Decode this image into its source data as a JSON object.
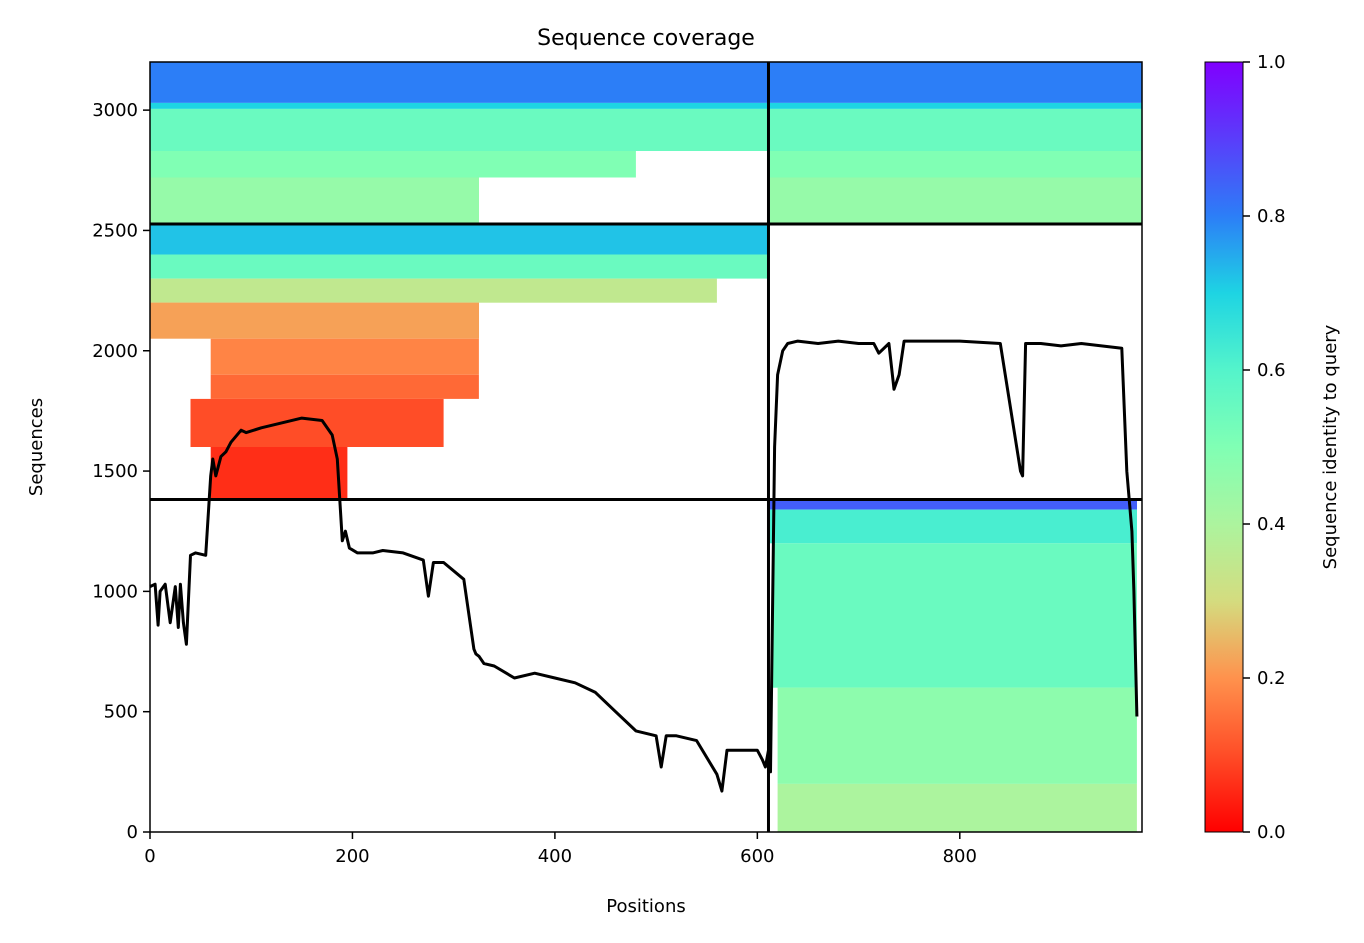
{
  "chart_data": {
    "type": "heatmap",
    "title": "Sequence coverage",
    "xlabel": "Positions",
    "ylabel": "Sequences",
    "xlim": [
      0,
      980
    ],
    "ylim": [
      0,
      3200
    ],
    "xticks": [
      0,
      200,
      400,
      600,
      800
    ],
    "yticks": [
      0,
      500,
      1000,
      1500,
      2000,
      2500,
      3000
    ],
    "grid": false,
    "colormap": "rainbow_r",
    "colorbar": {
      "label": "Sequence identity to query",
      "range": [
        0.0,
        1.0
      ],
      "ticks": [
        0.0,
        0.2,
        0.4,
        0.6,
        0.8,
        1.0
      ],
      "ticks_text": [
        "0.0",
        "0.2",
        "0.4",
        "0.6",
        "0.8",
        "1.0"
      ]
    },
    "chain_breaks_x": [
      611
    ],
    "msa_breaks_y": [
      1382,
      2527
    ],
    "msa_blocks": [
      {
        "name": "paired",
        "y_range": [
          2527,
          3200
        ],
        "bands": [
          {
            "y": [
              3030,
              3200
            ],
            "x": [
              [
                0,
                980
              ]
            ],
            "identity": 0.8
          },
          {
            "y": [
              3005,
              3030
            ],
            "x": [
              [
                0,
                980
              ]
            ],
            "identity": 0.7
          },
          {
            "y": [
              2830,
              3005
            ],
            "x": [
              [
                0,
                611
              ],
              [
                611,
                980
              ]
            ],
            "identity": 0.55
          },
          {
            "y": [
              2720,
              2830
            ],
            "x": [
              [
                0,
                480
              ],
              [
                611,
                980
              ]
            ],
            "identity": 0.5
          },
          {
            "y": [
              2527,
              2720
            ],
            "x": [
              [
                0,
                325
              ],
              [
                611,
                980
              ]
            ],
            "identity": 0.45
          }
        ]
      },
      {
        "name": "chain-A",
        "y_range": [
          1382,
          2527
        ],
        "bands": [
          {
            "y": [
              2400,
              2527
            ],
            "x": [
              [
                0,
                611
              ]
            ],
            "identity": 0.72
          },
          {
            "y": [
              2300,
              2400
            ],
            "x": [
              [
                0,
                611
              ]
            ],
            "identity": 0.55
          },
          {
            "y": [
              2200,
              2300
            ],
            "x": [
              [
                0,
                560
              ]
            ],
            "identity": 0.35
          },
          {
            "y": [
              2050,
              2200
            ],
            "x": [
              [
                0,
                325
              ]
            ],
            "identity": 0.22
          },
          {
            "y": [
              1900,
              2050
            ],
            "x": [
              [
                60,
                325
              ]
            ],
            "identity": 0.18
          },
          {
            "y": [
              1800,
              1900
            ],
            "x": [
              [
                60,
                325
              ]
            ],
            "identity": 0.14
          },
          {
            "y": [
              1600,
              1800
            ],
            "x": [
              [
                40,
                290
              ]
            ],
            "identity": 0.1
          },
          {
            "y": [
              1382,
              1600
            ],
            "x": [
              [
                60,
                195
              ]
            ],
            "identity": 0.06
          }
        ]
      },
      {
        "name": "chain-B",
        "y_range": [
          0,
          1382
        ],
        "bands": [
          {
            "y": [
              1340,
              1382
            ],
            "x": [
              [
                611,
                975
              ]
            ],
            "identity": 0.85
          },
          {
            "y": [
              1200,
              1340
            ],
            "x": [
              [
                611,
                975
              ]
            ],
            "identity": 0.62
          },
          {
            "y": [
              600,
              1200
            ],
            "x": [
              [
                615,
                975
              ]
            ],
            "identity": 0.55
          },
          {
            "y": [
              200,
              600
            ],
            "x": [
              [
                620,
                975
              ]
            ],
            "identity": 0.47
          },
          {
            "y": [
              0,
              200
            ],
            "x": [
              [
                620,
                975
              ]
            ],
            "identity": 0.4
          }
        ]
      }
    ],
    "series": [
      {
        "name": "",
        "type": "line",
        "color": "#000000",
        "x": [
          0,
          5,
          8,
          10,
          15,
          20,
          25,
          28,
          30,
          33,
          36,
          40,
          45,
          55,
          60,
          62,
          65,
          70,
          75,
          80,
          90,
          95,
          110,
          130,
          150,
          170,
          180,
          185,
          190,
          193,
          197,
          205,
          210,
          220,
          230,
          250,
          270,
          275,
          280,
          283,
          290,
          310,
          320,
          322,
          325,
          330,
          340,
          360,
          380,
          400,
          420,
          440,
          460,
          480,
          500,
          505,
          510,
          520,
          540,
          560,
          565,
          570,
          575,
          580,
          590,
          600,
          605,
          608,
          611,
          613,
          617,
          620,
          625,
          630,
          640,
          660,
          680,
          700,
          715,
          720,
          730,
          735,
          740,
          745,
          760,
          800,
          840,
          860,
          862,
          865,
          870,
          880,
          900,
          920,
          940,
          960,
          965,
          970,
          972,
          975
        ],
        "y": [
          1020,
          1030,
          860,
          1000,
          1030,
          870,
          1020,
          850,
          1030,
          870,
          780,
          1150,
          1160,
          1150,
          1480,
          1550,
          1480,
          1560,
          1580,
          1620,
          1670,
          1660,
          1680,
          1700,
          1720,
          1710,
          1650,
          1550,
          1210,
          1250,
          1180,
          1160,
          1160,
          1160,
          1170,
          1160,
          1130,
          980,
          1120,
          1120,
          1120,
          1050,
          760,
          740,
          730,
          700,
          690,
          640,
          660,
          640,
          620,
          580,
          500,
          420,
          400,
          270,
          400,
          400,
          380,
          240,
          170,
          340,
          340,
          340,
          340,
          340,
          300,
          270,
          340,
          250,
          1600,
          1900,
          2000,
          2030,
          2040,
          2030,
          2040,
          2030,
          2030,
          1990,
          2030,
          1840,
          1900,
          2040,
          2040,
          2040,
          2030,
          1500,
          1480,
          2030,
          2030,
          2030,
          2020,
          2030,
          2020,
          2010,
          1500,
          1250,
          1000,
          480
        ]
      }
    ]
  }
}
